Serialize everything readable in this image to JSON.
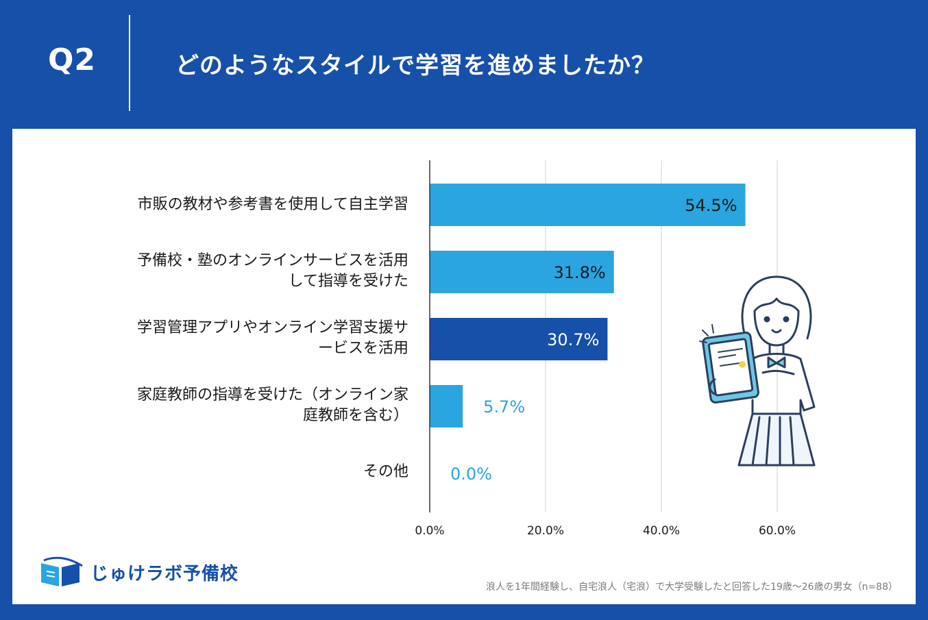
{
  "header": {
    "question_no": "Q2",
    "question": "どのようなスタイルで学習を進めましたか？"
  },
  "chart_data": {
    "type": "bar",
    "orientation": "horizontal",
    "categories": [
      "市販の教材や参考書を使用して自主学習",
      "予備校・塾のオンラインサービスを活用\nして指導を受けた",
      "学習管理アプリやオンライン学習支援サ\nービスを活用",
      "家庭教師の指導を受けた（オンライン家\n庭教師を含む）",
      "その他"
    ],
    "values": [
      54.5,
      31.8,
      30.7,
      5.7,
      0.0
    ],
    "value_labels": [
      "54.5%",
      "31.8%",
      "30.7%",
      "5.7%",
      "0.0%"
    ],
    "highlight_index": 2,
    "xlim": [
      0,
      60
    ],
    "xticks": [
      0,
      20,
      40,
      60
    ],
    "xtick_labels": [
      "0.0%",
      "20.0%",
      "40.0%",
      "60.0%"
    ],
    "grid": true,
    "colors": {
      "bar": "#2aa5e0",
      "highlight": "#1650a8",
      "label_outside": "#2aa5e0",
      "label_inside_dark": "#1a1a1a",
      "label_inside_light": "#ffffff"
    }
  },
  "footer": {
    "brand": "じゅけラボ予備校",
    "note": "浪人を1年間経験し、自宅浪人（宅浪）で大学受験したと回答した19歳〜26歳の男女（n=88）"
  }
}
